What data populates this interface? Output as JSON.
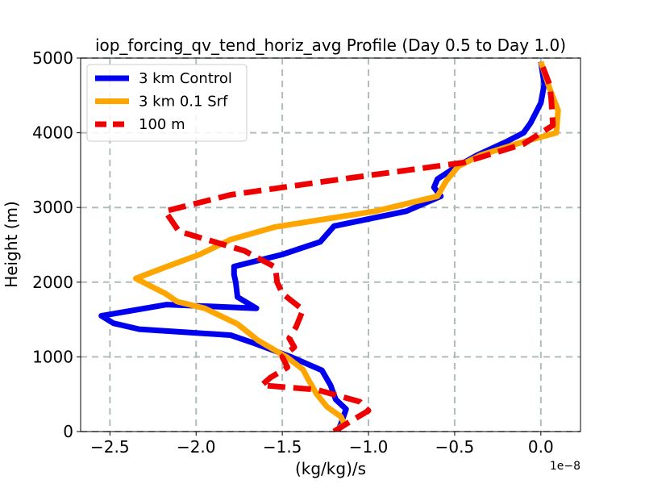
{
  "chart_data": {
    "type": "line",
    "title": "iop_forcing_qv_tend_horiz_avg Profile (Day 0.5 to Day 1.0)",
    "xlabel": "(kg/kg)/s",
    "ylabel": "Height (m)",
    "x_offset_label": "1e−8",
    "xlim": [
      -2.67,
      0.23
    ],
    "ylim": [
      0,
      5000
    ],
    "xticks": [
      -2.5,
      -2.0,
      -1.5,
      -1.0,
      -0.5,
      0.0
    ],
    "xtick_labels": [
      "−2.5",
      "−2.0",
      "−1.5",
      "−1.0",
      "−0.5",
      "0.0"
    ],
    "yticks": [
      0,
      1000,
      2000,
      3000,
      4000,
      5000
    ],
    "ytick_labels": [
      "0",
      "1000",
      "2000",
      "3000",
      "4000",
      "5000"
    ],
    "grid": true,
    "legend_position": "top-left",
    "series": [
      {
        "name": "3 km Control",
        "color": "#0000ee",
        "dash": "solid",
        "points": [
          [
            -1.18,
            0
          ],
          [
            -1.16,
            100
          ],
          [
            -1.13,
            300
          ],
          [
            -1.19,
            430
          ],
          [
            -1.22,
            620
          ],
          [
            -1.27,
            820
          ],
          [
            -1.45,
            1000
          ],
          [
            -1.66,
            1180
          ],
          [
            -1.8,
            1290
          ],
          [
            -2.33,
            1370
          ],
          [
            -2.48,
            1450
          ],
          [
            -2.55,
            1550
          ],
          [
            -2.17,
            1700
          ],
          [
            -1.65,
            1650
          ],
          [
            -1.76,
            1800
          ],
          [
            -1.77,
            2000
          ],
          [
            -1.78,
            2100
          ],
          [
            -1.78,
            2210
          ],
          [
            -1.5,
            2370
          ],
          [
            -1.28,
            2540
          ],
          [
            -1.2,
            2750
          ],
          [
            -0.78,
            2950
          ],
          [
            -0.58,
            3150
          ],
          [
            -0.62,
            3270
          ],
          [
            -0.6,
            3380
          ],
          [
            -0.5,
            3530
          ],
          [
            -0.37,
            3700
          ],
          [
            -0.2,
            3880
          ],
          [
            -0.1,
            4000
          ],
          [
            -0.06,
            4130
          ],
          [
            0.0,
            4400
          ],
          [
            0.02,
            4650
          ],
          [
            0.0,
            4950
          ]
        ]
      },
      {
        "name": "3 km 0.1 Srf",
        "color": "#ffa500",
        "dash": "solid",
        "points": [
          [
            -1.2,
            0
          ],
          [
            -1.14,
            100
          ],
          [
            -1.16,
            200
          ],
          [
            -1.24,
            330
          ],
          [
            -1.3,
            500
          ],
          [
            -1.35,
            700
          ],
          [
            -1.38,
            830
          ],
          [
            -1.47,
            990
          ],
          [
            -1.64,
            1220
          ],
          [
            -1.76,
            1440
          ],
          [
            -1.95,
            1650
          ],
          [
            -2.11,
            1740
          ],
          [
            -2.18,
            1850
          ],
          [
            -2.35,
            2050
          ],
          [
            -2.18,
            2200
          ],
          [
            -1.98,
            2370
          ],
          [
            -1.8,
            2570
          ],
          [
            -1.54,
            2740
          ],
          [
            -0.96,
            2950
          ],
          [
            -0.6,
            3150
          ],
          [
            -0.55,
            3350
          ],
          [
            -0.48,
            3550
          ],
          [
            -0.35,
            3700
          ],
          [
            -0.1,
            3880
          ],
          [
            0.09,
            4000
          ],
          [
            0.1,
            4300
          ],
          [
            0.05,
            4600
          ],
          [
            0.0,
            4950
          ]
        ]
      },
      {
        "name": "100 m",
        "color": "#ee0000",
        "dash": "dashed",
        "points": [
          [
            -1.2,
            0
          ],
          [
            -1.13,
            100
          ],
          [
            -1.0,
            280
          ],
          [
            -1.05,
            400
          ],
          [
            -1.3,
            560
          ],
          [
            -1.62,
            620
          ],
          [
            -1.57,
            720
          ],
          [
            -1.47,
            860
          ],
          [
            -1.5,
            1000
          ],
          [
            -1.43,
            1130
          ],
          [
            -1.46,
            1250
          ],
          [
            -1.42,
            1400
          ],
          [
            -1.38,
            1630
          ],
          [
            -1.5,
            1850
          ],
          [
            -1.53,
            2000
          ],
          [
            -1.54,
            2200
          ],
          [
            -1.72,
            2420
          ],
          [
            -2.1,
            2680
          ],
          [
            -2.18,
            2950
          ],
          [
            -1.8,
            3170
          ],
          [
            -1.25,
            3350
          ],
          [
            -0.45,
            3600
          ],
          [
            -0.1,
            3850
          ],
          [
            0.07,
            4100
          ],
          [
            0.06,
            4450
          ],
          [
            0.05,
            4650
          ],
          [
            0.0,
            4950
          ]
        ]
      }
    ]
  }
}
